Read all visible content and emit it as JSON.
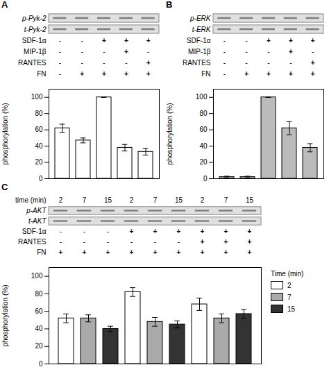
{
  "chart_data": [
    {
      "type": "bar",
      "title": "A",
      "categories": [
        null,
        null,
        null,
        null,
        null
      ],
      "values": [
        62,
        47,
        100,
        38,
        33
      ],
      "errors": [
        5,
        3,
        0,
        4,
        4
      ],
      "color": "white",
      "ylim": [
        0,
        110
      ],
      "yticks": [
        0,
        20,
        40,
        60,
        80,
        100
      ],
      "ylabel": "phosphorylation (%)",
      "tick_labels": "y",
      "grid": false,
      "blot_labels": [
        "p-Pyk-2",
        "t-Pyk-2"
      ],
      "condition_labels": [
        "SDF-1α",
        "MIP-1β",
        "RANTES",
        "FN"
      ],
      "conditions": [
        [
          "-",
          "-",
          "+",
          "+",
          "+"
        ],
        [
          "-",
          "-",
          "-",
          "+",
          "-"
        ],
        [
          "-",
          "-",
          "-",
          "-",
          "+"
        ],
        [
          "-",
          "+",
          "+",
          "+",
          "+"
        ]
      ]
    },
    {
      "type": "bar",
      "title": "B",
      "categories": [
        null,
        null,
        null,
        null,
        null
      ],
      "values": [
        2,
        2,
        100,
        62,
        38
      ],
      "errors": [
        1,
        1,
        0,
        8,
        5
      ],
      "color": "#bbbbbb",
      "ylim": [
        0,
        110
      ],
      "yticks": [
        0,
        20,
        40,
        60,
        80,
        100
      ],
      "ylabel": "phosphorylation (%)",
      "tick_labels": "y",
      "grid": false,
      "blot_labels": [
        "p-ERK",
        "t-ERK"
      ],
      "condition_labels": [
        "SDF-1α",
        "MIP-1β",
        "RANTES",
        "FN"
      ],
      "conditions": [
        [
          "-",
          "-",
          "+",
          "+",
          "+"
        ],
        [
          "-",
          "-",
          "-",
          "+",
          "-"
        ],
        [
          "-",
          "-",
          "-",
          "-",
          "+"
        ],
        [
          "-",
          "+",
          "+",
          "+",
          "+"
        ]
      ]
    },
    {
      "type": "bar",
      "title": "C",
      "categories": [
        null,
        null,
        null
      ],
      "series": [
        {
          "name": "2",
          "color": "white",
          "values": [
            52,
            82,
            68
          ],
          "errors": [
            5,
            5,
            7
          ]
        },
        {
          "name": "7",
          "color": "#aaaaaa",
          "values": [
            52,
            48,
            52
          ],
          "errors": [
            4,
            5,
            5
          ]
        },
        {
          "name": "15",
          "color": "#333333",
          "values": [
            40,
            45,
            57
          ],
          "errors": [
            3,
            4,
            5
          ]
        }
      ],
      "ylim": [
        0,
        110
      ],
      "yticks": [
        0,
        20,
        40,
        60,
        80,
        100
      ],
      "ylabel": "phosphorylation (%)",
      "tick_labels": "y",
      "grid": false,
      "legend": "right",
      "legend_title": "Time (min)",
      "time_row_label": "time (min)",
      "time_row": [
        "2",
        "7",
        "15",
        "2",
        "7",
        "15",
        "2",
        "7",
        "15"
      ],
      "blot_labels": [
        "p-AKT",
        "t-AKT"
      ],
      "condition_labels": [
        "SDF-1α",
        "RANTES",
        "FN"
      ],
      "conditions": [
        [
          "-",
          "-",
          "-",
          "+",
          "+",
          "+",
          "+",
          "+",
          "+"
        ],
        [
          "-",
          "-",
          "-",
          "-",
          "-",
          "-",
          "+",
          "+",
          "+"
        ],
        [
          "+",
          "+",
          "+",
          "+",
          "+",
          "+",
          "+",
          "+",
          "+"
        ]
      ]
    }
  ]
}
